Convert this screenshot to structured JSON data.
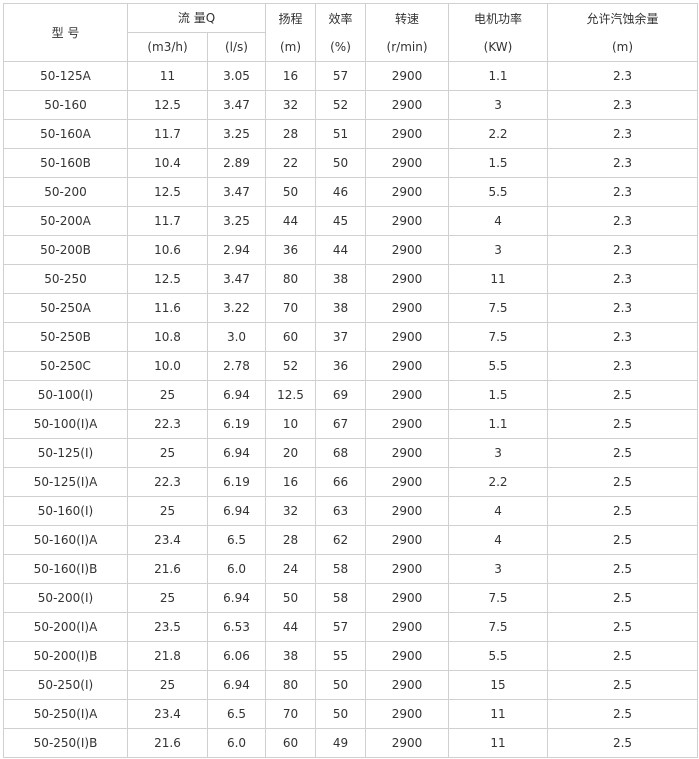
{
  "headers": {
    "model": "型 号",
    "flow": "流 量Q",
    "flow_m3h": "(m3/h)",
    "flow_ls": "(l/s)",
    "head": "扬程",
    "head_unit": "(m)",
    "efficiency": "效率",
    "efficiency_unit": "(%)",
    "speed": "转速",
    "speed_unit": "(r/min)",
    "power": "电机功率",
    "power_unit": "(KW)",
    "npsh": "允许汽蚀余量",
    "npsh_unit": "(m)"
  },
  "rows": [
    [
      "50-125A",
      "11",
      "3.05",
      "16",
      "57",
      "2900",
      "1.1",
      "2.3"
    ],
    [
      "50-160",
      "12.5",
      "3.47",
      "32",
      "52",
      "2900",
      "3",
      "2.3"
    ],
    [
      "50-160A",
      "11.7",
      "3.25",
      "28",
      "51",
      "2900",
      "2.2",
      "2.3"
    ],
    [
      "50-160B",
      "10.4",
      "2.89",
      "22",
      "50",
      "2900",
      "1.5",
      "2.3"
    ],
    [
      "50-200",
      "12.5",
      "3.47",
      "50",
      "46",
      "2900",
      "5.5",
      "2.3"
    ],
    [
      "50-200A",
      "11.7",
      "3.25",
      "44",
      "45",
      "2900",
      "4",
      "2.3"
    ],
    [
      "50-200B",
      "10.6",
      "2.94",
      "36",
      "44",
      "2900",
      "3",
      "2.3"
    ],
    [
      "50-250",
      "12.5",
      "3.47",
      "80",
      "38",
      "2900",
      "11",
      "2.3"
    ],
    [
      "50-250A",
      "11.6",
      "3.22",
      "70",
      "38",
      "2900",
      "7.5",
      "2.3"
    ],
    [
      "50-250B",
      "10.8",
      "3.0",
      "60",
      "37",
      "2900",
      "7.5",
      "2.3"
    ],
    [
      "50-250C",
      "10.0",
      "2.78",
      "52",
      "36",
      "2900",
      "5.5",
      "2.3"
    ],
    [
      "50-100(I)",
      "25",
      "6.94",
      "12.5",
      "69",
      "2900",
      "1.5",
      "2.5"
    ],
    [
      "50-100(I)A",
      "22.3",
      "6.19",
      "10",
      "67",
      "2900",
      "1.1",
      "2.5"
    ],
    [
      "50-125(I)",
      "25",
      "6.94",
      "20",
      "68",
      "2900",
      "3",
      "2.5"
    ],
    [
      "50-125(I)A",
      "22.3",
      "6.19",
      "16",
      "66",
      "2900",
      "2.2",
      "2.5"
    ],
    [
      "50-160(I)",
      "25",
      "6.94",
      "32",
      "63",
      "2900",
      "4",
      "2.5"
    ],
    [
      "50-160(I)A",
      "23.4",
      "6.5",
      "28",
      "62",
      "2900",
      "4",
      "2.5"
    ],
    [
      "50-160(I)B",
      "21.6",
      "6.0",
      "24",
      "58",
      "2900",
      "3",
      "2.5"
    ],
    [
      "50-200(I)",
      "25",
      "6.94",
      "50",
      "58",
      "2900",
      "7.5",
      "2.5"
    ],
    [
      "50-200(I)A",
      "23.5",
      "6.53",
      "44",
      "57",
      "2900",
      "7.5",
      "2.5"
    ],
    [
      "50-200(I)B",
      "21.8",
      "6.06",
      "38",
      "55",
      "2900",
      "5.5",
      "2.5"
    ],
    [
      "50-250(I)",
      "25",
      "6.94",
      "80",
      "50",
      "2900",
      "15",
      "2.5"
    ],
    [
      "50-250(I)A",
      "23.4",
      "6.5",
      "70",
      "50",
      "2900",
      "11",
      "2.5"
    ],
    [
      "50-250(I)B",
      "21.6",
      "6.0",
      "60",
      "49",
      "2900",
      "11",
      "2.5"
    ]
  ]
}
